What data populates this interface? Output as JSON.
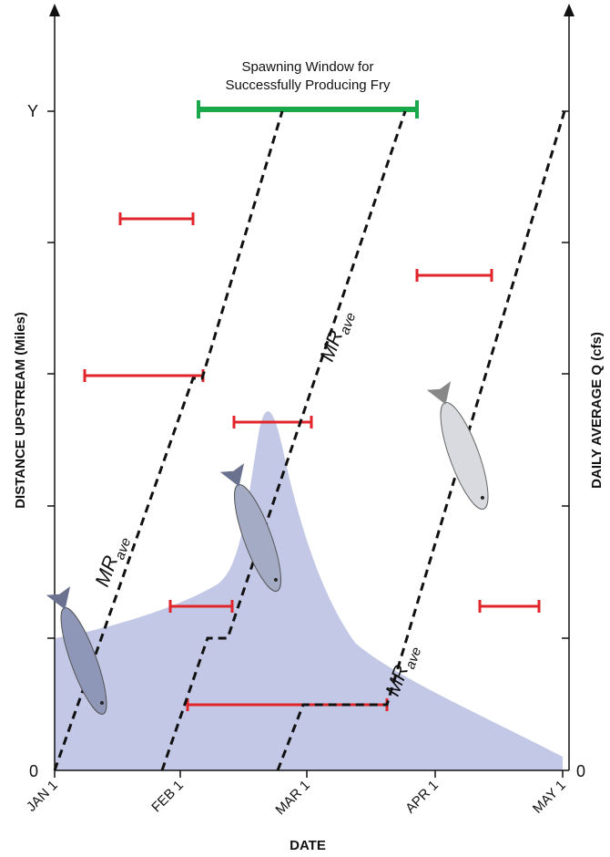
{
  "axes": {
    "y_left_label": "DISTANCE UPSTREAM (Miles)",
    "y_right_label": "DAILY AVERAGE Q (cfs)",
    "x_label": "DATE",
    "y_left_ticks": [
      "Y",
      "0"
    ],
    "y_right_tick": "0",
    "x_ticks": [
      "JAN 1",
      "FEB 1",
      "MAR 1",
      "APR 1",
      "MAY 1"
    ]
  },
  "annotation": [
    "Spawning Window for",
    "Successfully Producing Fry"
  ],
  "rate_labels": [
    {
      "main": "MR",
      "sub": "ave"
    },
    {
      "main": "MR",
      "sub": "ave"
    },
    {
      "main": "MR",
      "sub": "ave"
    }
  ]
}
